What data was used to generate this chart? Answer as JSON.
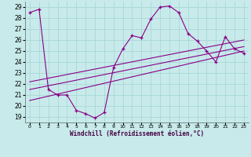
{
  "xlabel": "Windchill (Refroidissement éolien,°C)",
  "bg_color": "#c8eaea",
  "grid_color": "#a8d8d8",
  "line_color": "#880088",
  "xlim": [
    -0.5,
    23.5
  ],
  "ylim": [
    18.5,
    29.5
  ],
  "xticks": [
    0,
    1,
    2,
    3,
    4,
    5,
    6,
    7,
    8,
    9,
    10,
    11,
    12,
    13,
    14,
    15,
    16,
    17,
    18,
    19,
    20,
    21,
    22,
    23
  ],
  "yticks": [
    19,
    20,
    21,
    22,
    23,
    24,
    25,
    26,
    27,
    28,
    29
  ],
  "main_x": [
    0,
    1,
    2,
    3,
    4,
    5,
    6,
    7,
    8,
    9,
    10,
    11,
    12,
    13,
    14,
    15,
    16,
    17,
    18,
    19,
    20,
    21,
    22,
    23
  ],
  "main_y": [
    28.5,
    28.8,
    21.5,
    21.0,
    21.0,
    19.6,
    19.3,
    18.9,
    19.4,
    23.5,
    25.2,
    26.4,
    26.2,
    27.9,
    29.0,
    29.1,
    28.5,
    26.6,
    25.9,
    25.0,
    24.0,
    26.3,
    25.2,
    24.8
  ],
  "line1_x": [
    0,
    23
  ],
  "line1_y": [
    22.2,
    26.0
  ],
  "line2_x": [
    0,
    23
  ],
  "line2_y": [
    21.5,
    25.4
  ],
  "line3_x": [
    0,
    23
  ],
  "line3_y": [
    20.5,
    25.0
  ]
}
